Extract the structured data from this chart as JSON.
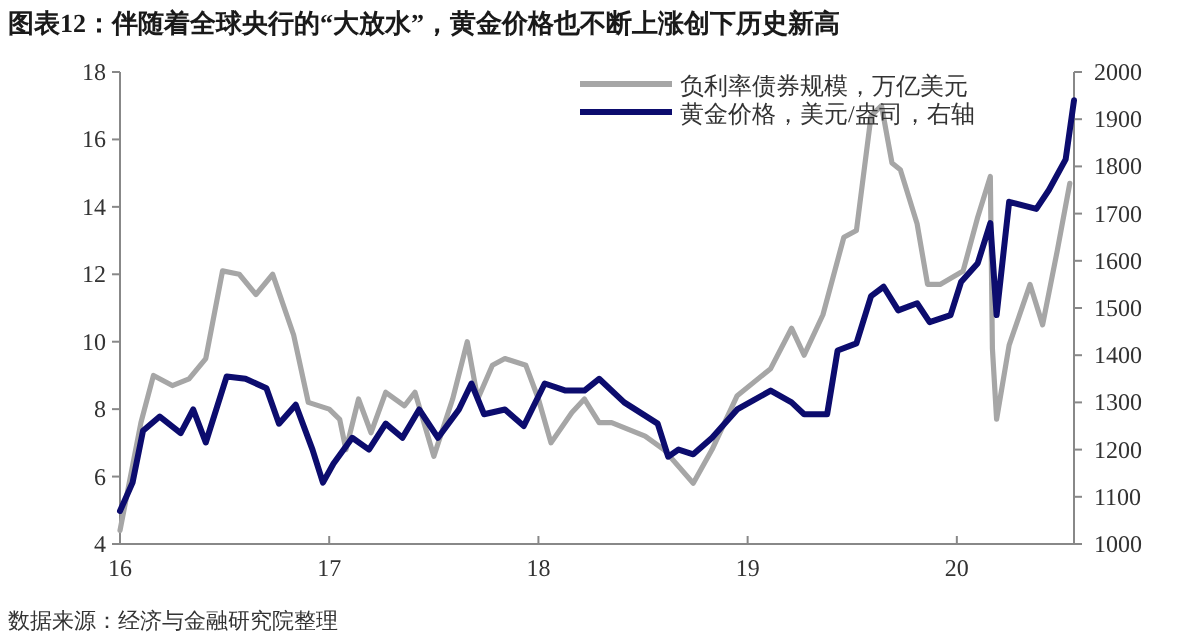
{
  "chart_data": {
    "type": "line",
    "title": "图表12：伴随着全球央行的“大放水”，黄金价格也不断上涨创下历史新高",
    "annotations": [
      "数据来源：经济与金融研究院整理"
    ],
    "xlim": [
      16,
      20.56
    ],
    "xticks": [
      16,
      17,
      18,
      19,
      20
    ],
    "ylim": [
      4,
      18
    ],
    "yticks": [
      4,
      6,
      8,
      10,
      12,
      14,
      16,
      18
    ],
    "y2lim": [
      1000,
      2000
    ],
    "y2ticks": [
      1000,
      1100,
      1200,
      1300,
      1400,
      1500,
      1600,
      1700,
      1800,
      1900,
      2000
    ],
    "legend": "top right",
    "grid": false,
    "marker": "none",
    "line_style": "solid",
    "series": [
      {
        "name": "负利率债券规模，万亿美元",
        "color": "#a6a6a6",
        "x": [
          16.0,
          16.1,
          16.16,
          16.25,
          16.33,
          16.41,
          16.49,
          16.57,
          16.65,
          16.73,
          16.83,
          16.9,
          17.0,
          17.05,
          17.08,
          17.14,
          17.2,
          17.27,
          17.36,
          17.41,
          17.5,
          17.59,
          17.66,
          17.71,
          17.78,
          17.84,
          17.94,
          18.0,
          18.06,
          18.16,
          18.22,
          18.29,
          18.35,
          18.51,
          18.6,
          18.74,
          18.83,
          18.95,
          19.11,
          19.21,
          19.27,
          19.36,
          19.46,
          19.52,
          19.59,
          19.64,
          19.69,
          19.73,
          19.81,
          19.86,
          19.92,
          20.03,
          20.1,
          20.16,
          20.17,
          20.19,
          20.25,
          20.35,
          20.41,
          20.48,
          20.54
        ],
        "values": [
          4.4,
          7.6,
          9.0,
          8.7,
          8.9,
          9.5,
          12.1,
          12.0,
          11.4,
          12.0,
          10.2,
          8.2,
          8.0,
          7.7,
          6.8,
          8.3,
          7.3,
          8.5,
          8.1,
          8.5,
          6.6,
          8.3,
          10.0,
          8.3,
          9.3,
          9.5,
          9.3,
          8.3,
          7.0,
          7.9,
          8.3,
          7.6,
          7.6,
          7.2,
          6.8,
          5.8,
          6.8,
          8.4,
          9.2,
          10.4,
          9.6,
          10.8,
          13.1,
          13.3,
          16.7,
          17.0,
          15.3,
          15.1,
          13.5,
          11.7,
          11.7,
          12.1,
          13.7,
          14.9,
          9.8,
          7.7,
          9.9,
          11.7,
          10.5,
          12.7,
          14.7
        ]
      },
      {
        "name": "黄金价格，美元/盎司，右轴",
        "color": "#0c0c6e",
        "axis": "y2",
        "x": [
          16.0,
          16.06,
          16.11,
          16.19,
          16.29,
          16.35,
          16.41,
          16.51,
          16.6,
          16.7,
          16.76,
          16.84,
          16.92,
          16.97,
          17.02,
          17.11,
          17.19,
          17.27,
          17.35,
          17.43,
          17.52,
          17.62,
          17.68,
          17.74,
          17.84,
          17.93,
          18.03,
          18.13,
          18.22,
          18.29,
          18.41,
          18.57,
          18.62,
          18.67,
          18.74,
          18.83,
          18.95,
          19.11,
          19.21,
          19.27,
          19.38,
          19.43,
          19.52,
          19.59,
          19.65,
          19.72,
          19.81,
          19.87,
          19.97,
          20.02,
          20.1,
          20.16,
          20.19,
          20.25,
          20.38,
          20.44,
          20.52,
          20.56
        ],
        "values": [
          1070,
          1130,
          1240,
          1270,
          1235,
          1285,
          1215,
          1355,
          1350,
          1330,
          1255,
          1295,
          1200,
          1130,
          1170,
          1225,
          1200,
          1255,
          1225,
          1285,
          1225,
          1285,
          1340,
          1275,
          1285,
          1250,
          1340,
          1325,
          1325,
          1350,
          1300,
          1255,
          1185,
          1200,
          1190,
          1225,
          1285,
          1325,
          1300,
          1275,
          1275,
          1410,
          1425,
          1525,
          1545,
          1495,
          1510,
          1470,
          1485,
          1555,
          1595,
          1680,
          1485,
          1725,
          1710,
          1750,
          1815,
          1940
        ]
      }
    ]
  }
}
